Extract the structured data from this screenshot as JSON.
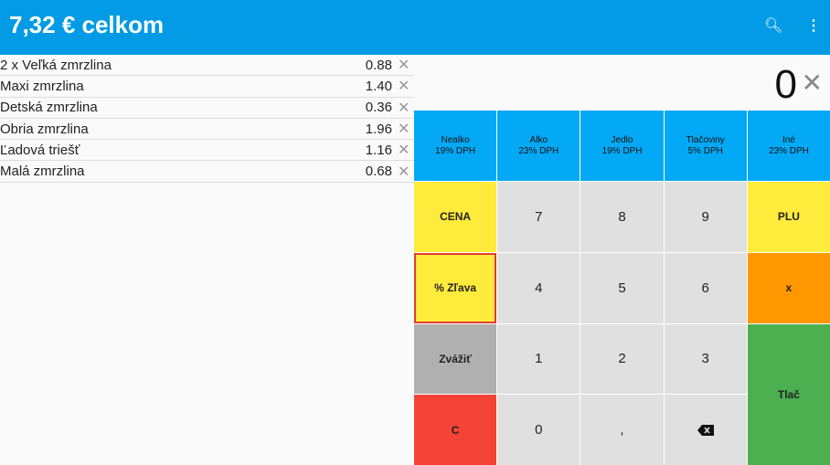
{
  "header": {
    "title": "7,32 € celkom",
    "icons": [
      "search-icon",
      "more-vert-icon"
    ]
  },
  "items": [
    {
      "name": "2 x Veľká zmrzlina",
      "price": "0.88"
    },
    {
      "name": "Maxi zmrzlina",
      "price": "1.40"
    },
    {
      "name": "Detská zmrzlina",
      "price": "0.36"
    },
    {
      "name": "Obria zmrzlina",
      "price": "1.96"
    },
    {
      "name": "Ľadová triešť",
      "price": "1.16"
    },
    {
      "name": "Malá zmrzlina",
      "price": "0.68"
    }
  ],
  "display": {
    "value": "0"
  },
  "categories": [
    {
      "name": "Nealko",
      "vat": "19% DPH"
    },
    {
      "name": "Alko",
      "vat": "23% DPH"
    },
    {
      "name": "Jedlo",
      "vat": "19% DPH"
    },
    {
      "name": "Tlačoviny",
      "vat": "5% DPH"
    },
    {
      "name": "Iné",
      "vat": "23% DPH"
    }
  ],
  "keys": {
    "cena": "CENA",
    "zlava": "% Zľava",
    "zvazit": "Zvážiť",
    "c": "C",
    "plu": "PLU",
    "x": "x",
    "tlac": "Tlač",
    "k7": "7",
    "k8": "8",
    "k9": "9",
    "k4": "4",
    "k5": "5",
    "k6": "6",
    "k1": "1",
    "k2": "2",
    "k3": "3",
    "k0": "0",
    "comma": ","
  },
  "colors": {
    "appbar": "#039be5",
    "category": "#03a9f4",
    "yellow": "#ffeb3b",
    "red": "#f44336",
    "orange": "#ff9800",
    "green": "#4caf50"
  }
}
